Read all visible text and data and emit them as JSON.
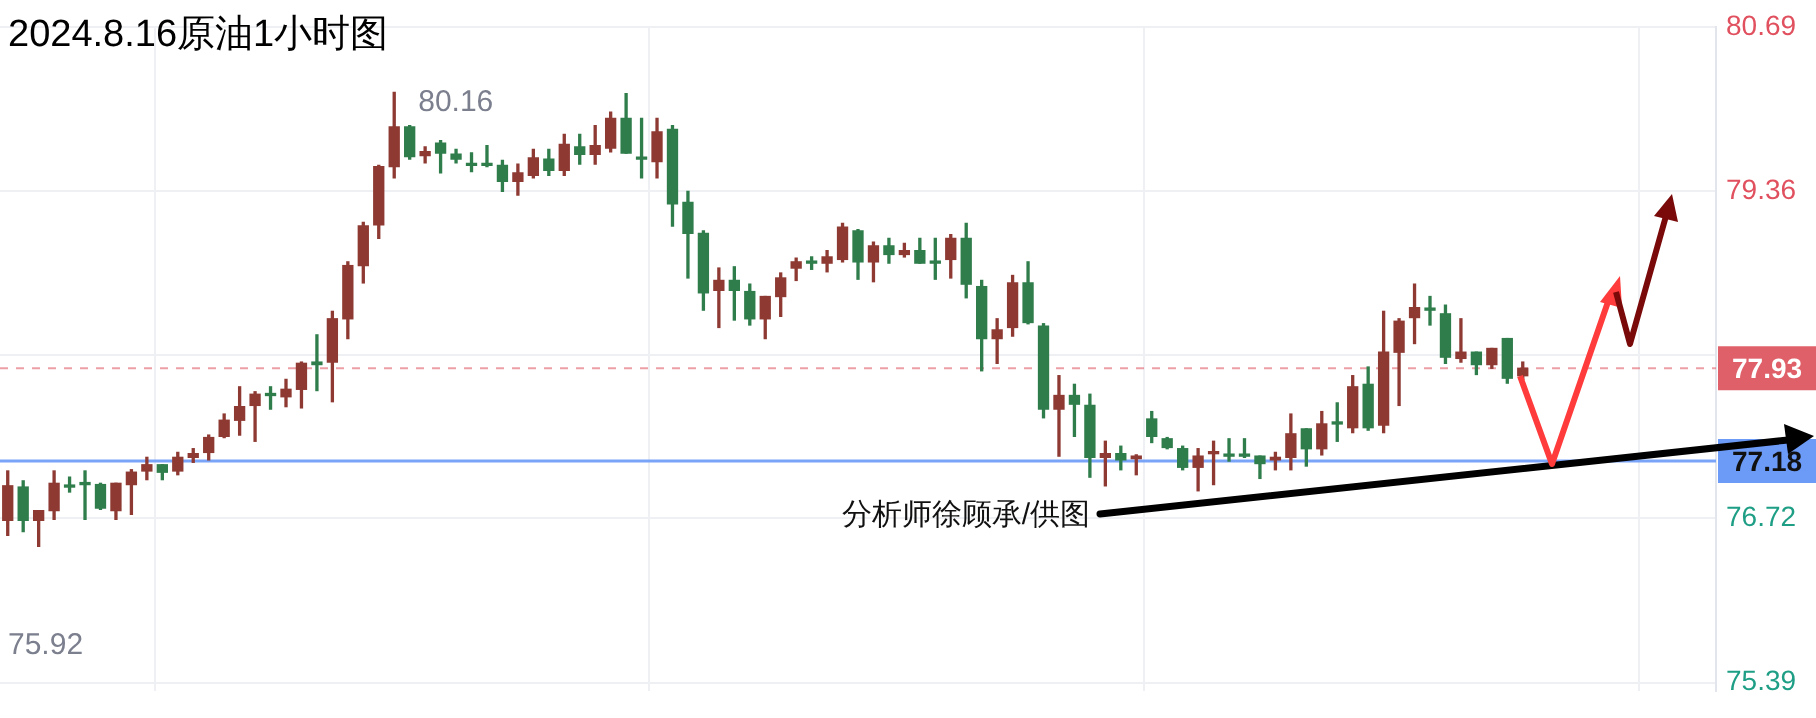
{
  "chart_data": {
    "type": "candlestick",
    "title": "2024.8.16原油1小时图",
    "categories": [
      null,
      null,
      null,
      null,
      null,
      null,
      null,
      null,
      null,
      null,
      null,
      null,
      null,
      null,
      null,
      null,
      null,
      null,
      null,
      null,
      null,
      null,
      null,
      null,
      null,
      null,
      null,
      null,
      null,
      null,
      null,
      null,
      null,
      null,
      null,
      null,
      null,
      null,
      null,
      null,
      null,
      null,
      null,
      null,
      null,
      null,
      null,
      null,
      null,
      null,
      null,
      null,
      null,
      null,
      null,
      null,
      null,
      null,
      null,
      null,
      null,
      null,
      null,
      null,
      null,
      null,
      null,
      null,
      null,
      null,
      null,
      null,
      null,
      null,
      null,
      null,
      null,
      null,
      null,
      null,
      null,
      null,
      null,
      null,
      null,
      null,
      null,
      null,
      null,
      null,
      null,
      null,
      null,
      null,
      null,
      null,
      null,
      null,
      null,
      null,
      null,
      null,
      null,
      null,
      null,
      null,
      null,
      null,
      null,
      null,
      null
    ],
    "ohlc": [
      [
        76.7,
        77.1,
        76.58,
        76.98
      ],
      [
        76.97,
        77.02,
        76.61,
        76.7
      ],
      [
        76.7,
        76.78,
        76.49,
        76.78
      ],
      [
        76.78,
        77.1,
        76.71,
        77.0
      ],
      [
        76.98,
        77.05,
        76.93,
        76.97
      ],
      [
        77.0,
        77.1,
        76.71,
        76.99
      ],
      [
        76.99,
        77.0,
        76.79,
        76.8
      ],
      [
        76.78,
        77.0,
        76.71,
        77.0
      ],
      [
        76.99,
        77.11,
        76.75,
        77.09
      ],
      [
        77.1,
        77.21,
        77.03,
        77.15
      ],
      [
        77.15,
        77.15,
        77.03,
        77.09
      ],
      [
        77.1,
        77.25,
        77.07,
        77.21
      ],
      [
        77.21,
        77.28,
        77.17,
        77.24
      ],
      [
        77.25,
        77.39,
        77.19,
        77.37
      ],
      [
        77.38,
        77.56,
        77.37,
        77.51
      ],
      [
        77.51,
        77.78,
        77.39,
        77.62
      ],
      [
        77.63,
        77.74,
        77.34,
        77.72
      ],
      [
        77.72,
        77.78,
        77.6,
        77.71
      ],
      [
        77.7,
        77.84,
        77.62,
        77.76
      ],
      [
        77.76,
        77.98,
        77.61,
        77.97
      ],
      [
        77.98,
        78.2,
        77.75,
        77.96
      ],
      [
        77.98,
        78.39,
        77.66,
        78.33
      ],
      [
        78.33,
        78.79,
        78.17,
        78.76
      ],
      [
        78.76,
        79.11,
        78.62,
        79.08
      ],
      [
        79.09,
        79.57,
        78.98,
        79.56
      ],
      [
        79.56,
        80.16,
        79.47,
        79.88
      ],
      [
        79.88,
        79.89,
        79.62,
        79.64
      ],
      [
        79.65,
        79.72,
        79.59,
        79.68
      ],
      [
        79.75,
        79.77,
        79.51,
        79.67
      ],
      [
        79.66,
        79.7,
        79.59,
        79.62
      ],
      [
        79.58,
        79.67,
        79.52,
        79.57
      ],
      [
        79.58,
        79.73,
        79.56,
        79.57
      ],
      [
        79.57,
        79.61,
        79.36,
        79.44
      ],
      [
        79.44,
        79.58,
        79.33,
        79.51
      ],
      [
        79.49,
        79.7,
        79.47,
        79.63
      ],
      [
        79.62,
        79.7,
        79.49,
        79.53
      ],
      [
        79.53,
        79.82,
        79.49,
        79.74
      ],
      [
        79.72,
        79.82,
        79.58,
        79.66
      ],
      [
        79.66,
        79.89,
        79.58,
        79.73
      ],
      [
        79.71,
        80.0,
        79.68,
        79.95
      ],
      [
        79.95,
        80.15,
        79.67,
        79.67
      ],
      [
        79.63,
        79.95,
        79.47,
        79.62
      ],
      [
        79.6,
        79.95,
        79.47,
        79.84
      ],
      [
        79.86,
        79.89,
        79.08,
        79.26
      ],
      [
        79.27,
        79.36,
        78.66,
        79.02
      ],
      [
        79.02,
        79.04,
        78.4,
        78.54
      ],
      [
        78.56,
        78.74,
        78.26,
        78.64
      ],
      [
        78.64,
        78.75,
        78.32,
        78.56
      ],
      [
        78.55,
        78.61,
        78.28,
        78.33
      ],
      [
        78.33,
        78.51,
        78.17,
        78.51
      ],
      [
        78.51,
        78.7,
        78.35,
        78.66
      ],
      [
        78.74,
        78.82,
        78.64,
        78.79
      ],
      [
        78.79,
        78.83,
        78.73,
        78.78
      ],
      [
        78.78,
        78.88,
        78.71,
        78.83
      ],
      [
        78.81,
        79.1,
        78.79,
        79.07
      ],
      [
        79.04,
        79.05,
        78.65,
        78.79
      ],
      [
        78.79,
        78.95,
        78.63,
        78.92
      ],
      [
        78.92,
        78.98,
        78.78,
        78.85
      ],
      [
        78.85,
        78.94,
        78.83,
        78.88
      ],
      [
        78.88,
        78.98,
        78.78,
        78.78
      ],
      [
        78.79,
        78.98,
        78.65,
        78.78
      ],
      [
        78.81,
        79.01,
        78.66,
        78.98
      ],
      [
        78.98,
        79.1,
        78.5,
        78.61
      ],
      [
        78.59,
        78.64,
        77.91,
        78.17
      ],
      [
        78.17,
        78.33,
        77.97,
        78.24
      ],
      [
        78.26,
        78.68,
        78.19,
        78.62
      ],
      [
        78.62,
        78.79,
        78.29,
        78.3
      ],
      [
        78.27,
        78.29,
        77.53,
        77.6
      ],
      [
        77.6,
        77.87,
        77.22,
        77.71
      ],
      [
        77.71,
        77.8,
        77.38,
        77.64
      ],
      [
        77.63,
        77.72,
        77.05,
        77.21
      ],
      [
        77.21,
        77.34,
        76.98,
        77.24
      ],
      [
        77.24,
        77.3,
        77.11,
        77.19
      ],
      [
        77.2,
        77.23,
        77.07,
        77.22
      ],
      [
        77.52,
        77.58,
        77.33,
        77.38
      ],
      [
        77.36,
        77.37,
        77.28,
        77.29
      ],
      [
        77.28,
        77.3,
        77.11,
        77.13
      ],
      [
        77.13,
        77.28,
        76.94,
        77.22
      ],
      [
        77.24,
        77.34,
        76.99,
        77.25
      ],
      [
        77.23,
        77.36,
        77.18,
        77.22
      ],
      [
        77.23,
        77.36,
        77.21,
        77.22
      ],
      [
        77.22,
        77.22,
        77.04,
        77.16
      ],
      [
        77.19,
        77.25,
        77.11,
        77.21
      ],
      [
        77.21,
        77.56,
        77.11,
        77.4
      ],
      [
        77.44,
        77.44,
        77.14,
        77.28
      ],
      [
        77.28,
        77.58,
        77.23,
        77.48
      ],
      [
        77.49,
        77.65,
        77.34,
        77.48
      ],
      [
        77.45,
        77.87,
        77.41,
        77.78
      ],
      [
        77.8,
        77.94,
        77.43,
        77.45
      ],
      [
        77.47,
        78.39,
        77.41,
        78.06
      ],
      [
        78.06,
        78.33,
        77.63,
        78.31
      ],
      [
        78.34,
        78.61,
        78.13,
        78.42
      ],
      [
        78.41,
        78.51,
        78.28,
        78.4
      ],
      [
        78.37,
        78.44,
        77.97,
        78.02
      ],
      [
        78.01,
        78.33,
        77.98,
        78.06
      ],
      [
        78.06,
        78.06,
        77.88,
        77.96
      ],
      [
        77.96,
        78.09,
        77.93,
        78.09
      ],
      [
        78.17,
        78.17,
        77.81,
        77.85
      ],
      [
        77.87,
        77.98,
        77.84,
        77.93
      ],
      null,
      null,
      null,
      null,
      null,
      null,
      null,
      null,
      null,
      null,
      null,
      null
    ],
    "ylim": [
      75.32,
      80.69
    ],
    "yticks": [
      80.69,
      79.36,
      {
        "value": 78.04,
        "label": null
      },
      76.72,
      75.39
    ],
    "grid": true,
    "tick_labels": "y",
    "ref_lines": [
      {
        "axis": "y",
        "value": 77.93,
        "label": "77.93",
        "color": "#e0606a",
        "line_style": "dashed"
      },
      {
        "axis": "y",
        "value": 77.18,
        "label": "77.18",
        "color": "#6b9af7"
      }
    ],
    "annotations": [
      "80.16",
      "75.92",
      "分析师徐顾承/供图"
    ]
  }
}
